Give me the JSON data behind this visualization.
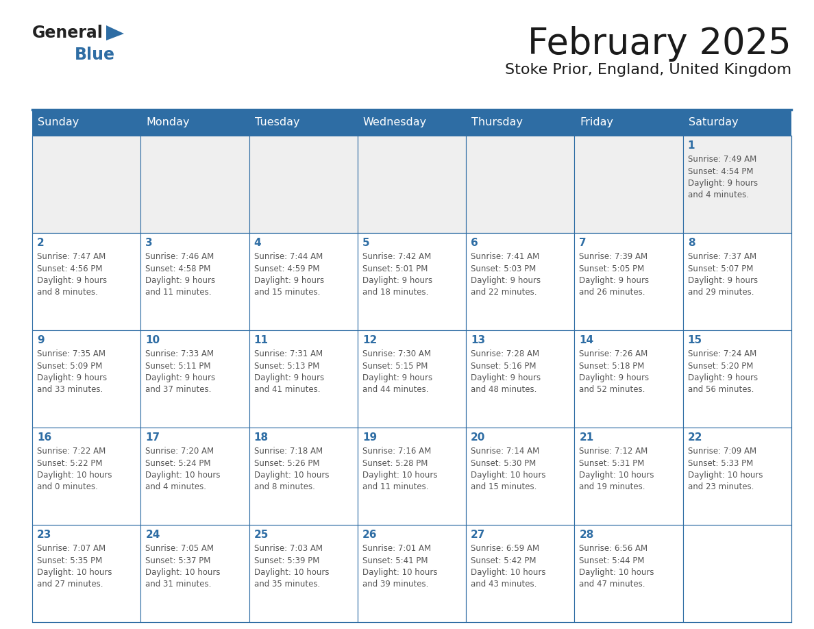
{
  "title": "February 2025",
  "subtitle": "Stoke Prior, England, United Kingdom",
  "header_bg": "#2E6DA4",
  "header_text_color": "#FFFFFF",
  "cell_bg_white": "#FFFFFF",
  "cell_bg_gray": "#EFEFEF",
  "cell_border_color": "#2E6DA4",
  "day_number_color": "#2E6DA4",
  "detail_text_color": "#555555",
  "days_of_week": [
    "Sunday",
    "Monday",
    "Tuesday",
    "Wednesday",
    "Thursday",
    "Friday",
    "Saturday"
  ],
  "weeks": [
    [
      {
        "day": null,
        "text": ""
      },
      {
        "day": null,
        "text": ""
      },
      {
        "day": null,
        "text": ""
      },
      {
        "day": null,
        "text": ""
      },
      {
        "day": null,
        "text": ""
      },
      {
        "day": null,
        "text": ""
      },
      {
        "day": 1,
        "text": "Sunrise: 7:49 AM\nSunset: 4:54 PM\nDaylight: 9 hours\nand 4 minutes."
      }
    ],
    [
      {
        "day": 2,
        "text": "Sunrise: 7:47 AM\nSunset: 4:56 PM\nDaylight: 9 hours\nand 8 minutes."
      },
      {
        "day": 3,
        "text": "Sunrise: 7:46 AM\nSunset: 4:58 PM\nDaylight: 9 hours\nand 11 minutes."
      },
      {
        "day": 4,
        "text": "Sunrise: 7:44 AM\nSunset: 4:59 PM\nDaylight: 9 hours\nand 15 minutes."
      },
      {
        "day": 5,
        "text": "Sunrise: 7:42 AM\nSunset: 5:01 PM\nDaylight: 9 hours\nand 18 minutes."
      },
      {
        "day": 6,
        "text": "Sunrise: 7:41 AM\nSunset: 5:03 PM\nDaylight: 9 hours\nand 22 minutes."
      },
      {
        "day": 7,
        "text": "Sunrise: 7:39 AM\nSunset: 5:05 PM\nDaylight: 9 hours\nand 26 minutes."
      },
      {
        "day": 8,
        "text": "Sunrise: 7:37 AM\nSunset: 5:07 PM\nDaylight: 9 hours\nand 29 minutes."
      }
    ],
    [
      {
        "day": 9,
        "text": "Sunrise: 7:35 AM\nSunset: 5:09 PM\nDaylight: 9 hours\nand 33 minutes."
      },
      {
        "day": 10,
        "text": "Sunrise: 7:33 AM\nSunset: 5:11 PM\nDaylight: 9 hours\nand 37 minutes."
      },
      {
        "day": 11,
        "text": "Sunrise: 7:31 AM\nSunset: 5:13 PM\nDaylight: 9 hours\nand 41 minutes."
      },
      {
        "day": 12,
        "text": "Sunrise: 7:30 AM\nSunset: 5:15 PM\nDaylight: 9 hours\nand 44 minutes."
      },
      {
        "day": 13,
        "text": "Sunrise: 7:28 AM\nSunset: 5:16 PM\nDaylight: 9 hours\nand 48 minutes."
      },
      {
        "day": 14,
        "text": "Sunrise: 7:26 AM\nSunset: 5:18 PM\nDaylight: 9 hours\nand 52 minutes."
      },
      {
        "day": 15,
        "text": "Sunrise: 7:24 AM\nSunset: 5:20 PM\nDaylight: 9 hours\nand 56 minutes."
      }
    ],
    [
      {
        "day": 16,
        "text": "Sunrise: 7:22 AM\nSunset: 5:22 PM\nDaylight: 10 hours\nand 0 minutes."
      },
      {
        "day": 17,
        "text": "Sunrise: 7:20 AM\nSunset: 5:24 PM\nDaylight: 10 hours\nand 4 minutes."
      },
      {
        "day": 18,
        "text": "Sunrise: 7:18 AM\nSunset: 5:26 PM\nDaylight: 10 hours\nand 8 minutes."
      },
      {
        "day": 19,
        "text": "Sunrise: 7:16 AM\nSunset: 5:28 PM\nDaylight: 10 hours\nand 11 minutes."
      },
      {
        "day": 20,
        "text": "Sunrise: 7:14 AM\nSunset: 5:30 PM\nDaylight: 10 hours\nand 15 minutes."
      },
      {
        "day": 21,
        "text": "Sunrise: 7:12 AM\nSunset: 5:31 PM\nDaylight: 10 hours\nand 19 minutes."
      },
      {
        "day": 22,
        "text": "Sunrise: 7:09 AM\nSunset: 5:33 PM\nDaylight: 10 hours\nand 23 minutes."
      }
    ],
    [
      {
        "day": 23,
        "text": "Sunrise: 7:07 AM\nSunset: 5:35 PM\nDaylight: 10 hours\nand 27 minutes."
      },
      {
        "day": 24,
        "text": "Sunrise: 7:05 AM\nSunset: 5:37 PM\nDaylight: 10 hours\nand 31 minutes."
      },
      {
        "day": 25,
        "text": "Sunrise: 7:03 AM\nSunset: 5:39 PM\nDaylight: 10 hours\nand 35 minutes."
      },
      {
        "day": 26,
        "text": "Sunrise: 7:01 AM\nSunset: 5:41 PM\nDaylight: 10 hours\nand 39 minutes."
      },
      {
        "day": 27,
        "text": "Sunrise: 6:59 AM\nSunset: 5:42 PM\nDaylight: 10 hours\nand 43 minutes."
      },
      {
        "day": 28,
        "text": "Sunrise: 6:56 AM\nSunset: 5:44 PM\nDaylight: 10 hours\nand 47 minutes."
      },
      {
        "day": null,
        "text": ""
      }
    ]
  ],
  "logo_general_color": "#222222",
  "logo_blue_color": "#2E6DA4",
  "figsize": [
    11.88,
    9.18
  ],
  "dpi": 100
}
